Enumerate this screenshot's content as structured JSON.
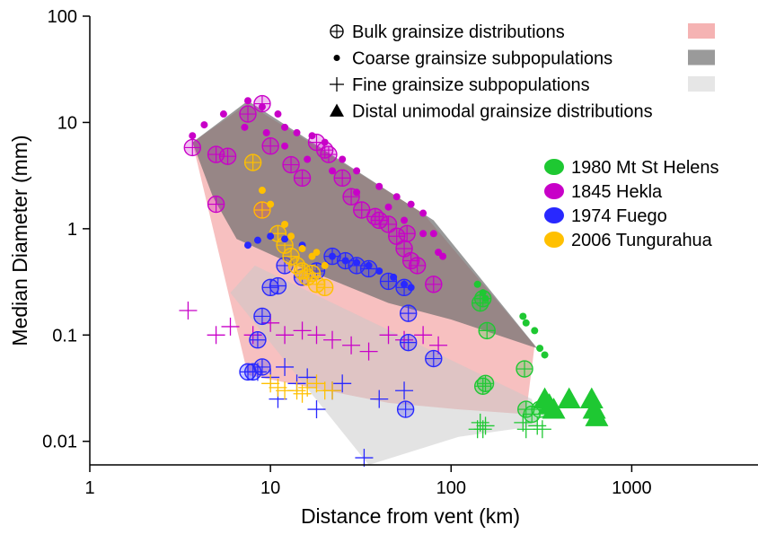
{
  "chart_data": {
    "type": "scatter",
    "xlabel": "Distance from vent (km)",
    "ylabel": "Median Diameter (mm)",
    "x_scale": "log",
    "y_scale": "log",
    "xlim": [
      1,
      5000
    ],
    "ylim": [
      0.006,
      100
    ],
    "x_ticks": [
      {
        "value": 1,
        "label": "1"
      },
      {
        "value": 10,
        "label": "10"
      },
      {
        "value": 100,
        "label": "100"
      },
      {
        "value": 1000,
        "label": "1000"
      }
    ],
    "y_ticks": [
      {
        "value": 0.01,
        "label": "0.01"
      },
      {
        "value": 0.1,
        "label": "0.1"
      },
      {
        "value": 1,
        "label": "1"
      },
      {
        "value": 10,
        "label": "10"
      },
      {
        "value": 100,
        "label": "100"
      }
    ],
    "grid": false,
    "symbol_legend": {
      "placement": "top-right",
      "items": [
        {
          "symbol": "circle-plus",
          "label": "Bulk grainsize distributions",
          "swatch_color": "#f5b3b3"
        },
        {
          "symbol": "dot",
          "label": "Coarse grainsize subpopulations",
          "swatch_color": "#9a9a9a"
        },
        {
          "symbol": "plus",
          "label": "Fine grainsize subpopulations",
          "swatch_color": "#e6e6e6"
        },
        {
          "symbol": "triangle",
          "label": "Distal unimodal grainsize distributions",
          "swatch_color": ""
        }
      ]
    },
    "color_legend": {
      "placement": "right",
      "items": [
        {
          "label": "1980 Mt St Helens",
          "color": "#1ec832"
        },
        {
          "label": "1845 Hekla",
          "color": "#c800c8"
        },
        {
          "label": "1974 Fuego",
          "color": "#2828ff"
        },
        {
          "label": "2006 Tungurahua",
          "color": "#ffc000"
        }
      ]
    },
    "envelopes": [
      {
        "name": "bulk",
        "fill": "#f08c8c",
        "opacity": 0.55,
        "points": [
          [
            3.7,
            6.5
          ],
          [
            7.5,
            15
          ],
          [
            70,
            1.4
          ],
          [
            290,
            0.08
          ],
          [
            260,
            0.018
          ],
          [
            110,
            0.02
          ],
          [
            45,
            0.023
          ],
          [
            7.5,
            0.042
          ],
          [
            3.7,
            6.5
          ]
        ]
      },
      {
        "name": "coarse",
        "fill": "#6e6e6e",
        "opacity": 0.7,
        "points": [
          [
            3.7,
            6.5
          ],
          [
            7.5,
            16
          ],
          [
            80,
            1.2
          ],
          [
            300,
            0.075
          ],
          [
            100,
            0.14
          ],
          [
            45,
            0.2
          ],
          [
            12,
            0.5
          ],
          [
            6.5,
            0.8
          ],
          [
            4.8,
            2.0
          ],
          [
            3.7,
            6.5
          ]
        ]
      },
      {
        "name": "fine",
        "fill": "#c8c8c8",
        "opacity": 0.5,
        "points": [
          [
            6,
            0.25
          ],
          [
            8.2,
            0.45
          ],
          [
            280,
            0.025
          ],
          [
            300,
            0.014
          ],
          [
            110,
            0.011
          ],
          [
            35,
            0.006
          ],
          [
            6,
            0.25
          ]
        ]
      }
    ],
    "series": [
      {
        "name": "1845 Hekla",
        "color": "#c800c8",
        "marker": "dot",
        "points": [
          [
            3.7,
            7.5
          ],
          [
            4.3,
            9.5
          ],
          [
            5.5,
            12
          ],
          [
            7.5,
            16
          ],
          [
            9,
            14
          ],
          [
            11,
            12
          ],
          [
            12,
            9
          ],
          [
            14,
            8
          ],
          [
            17,
            7.5
          ],
          [
            20,
            6.5
          ],
          [
            25,
            4.5
          ],
          [
            30,
            3.5
          ],
          [
            40,
            2.5
          ],
          [
            50,
            2
          ],
          [
            60,
            1.7
          ],
          [
            70,
            1.4
          ],
          [
            80,
            0.9
          ],
          [
            90,
            0.55
          ],
          [
            7.2,
            9
          ],
          [
            9.5,
            8
          ],
          [
            12,
            6
          ],
          [
            16,
            4.5
          ],
          [
            22,
            3.5
          ],
          [
            30,
            2.2
          ],
          [
            45,
            1.6
          ],
          [
            55,
            1.2
          ],
          [
            70,
            0.9
          ],
          [
            85,
            0.6
          ]
        ]
      },
      {
        "name": "1845 Hekla",
        "color": "#c800c8",
        "marker": "circle-plus",
        "points": [
          [
            3.7,
            5.8
          ],
          [
            5,
            5
          ],
          [
            5.8,
            4.8
          ],
          [
            7.5,
            12
          ],
          [
            9,
            15
          ],
          [
            10,
            6
          ],
          [
            13,
            4
          ],
          [
            15,
            3
          ],
          [
            18,
            6.5
          ],
          [
            21,
            5
          ],
          [
            25,
            3
          ],
          [
            28,
            2
          ],
          [
            32,
            1.5
          ],
          [
            38,
            1.3
          ],
          [
            45,
            1.1
          ],
          [
            50,
            0.85
          ],
          [
            55,
            0.65
          ],
          [
            60,
            0.5
          ],
          [
            65,
            0.45
          ],
          [
            80,
            0.3
          ],
          [
            5,
            1.7
          ],
          [
            9,
            1.5
          ],
          [
            20,
            5.5
          ],
          [
            40,
            1.2
          ],
          [
            57,
            0.9
          ]
        ]
      },
      {
        "name": "1845 Hekla",
        "color": "#c800c8",
        "marker": "plus",
        "points": [
          [
            3.5,
            0.17
          ],
          [
            5,
            0.1
          ],
          [
            6,
            0.12
          ],
          [
            8,
            0.1
          ],
          [
            10,
            0.13
          ],
          [
            12,
            0.1
          ],
          [
            15,
            0.11
          ],
          [
            18,
            0.1
          ],
          [
            22,
            0.09
          ],
          [
            28,
            0.08
          ],
          [
            35,
            0.07
          ],
          [
            45,
            0.1
          ],
          [
            55,
            0.09
          ],
          [
            70,
            0.1
          ],
          [
            85,
            0.08
          ]
        ]
      },
      {
        "name": "1974 Fuego",
        "color": "#2828ff",
        "marker": "dot",
        "points": [
          [
            7.5,
            0.7
          ],
          [
            8.5,
            0.78
          ],
          [
            10,
            0.85
          ],
          [
            12,
            0.8
          ],
          [
            15,
            0.7
          ],
          [
            18,
            0.6
          ],
          [
            22,
            0.55
          ],
          [
            26,
            0.5
          ],
          [
            30,
            0.48
          ],
          [
            35,
            0.45
          ],
          [
            40,
            0.4
          ],
          [
            48,
            0.35
          ],
          [
            55,
            0.3
          ],
          [
            60,
            0.28
          ]
        ]
      },
      {
        "name": "1974 Fuego",
        "color": "#2828ff",
        "marker": "circle-plus",
        "points": [
          [
            8,
            0.045
          ],
          [
            8.5,
            0.09
          ],
          [
            9,
            0.15
          ],
          [
            10,
            0.28
          ],
          [
            12,
            0.45
          ],
          [
            15,
            0.35
          ],
          [
            18,
            0.4
          ],
          [
            22,
            0.55
          ],
          [
            26,
            0.5
          ],
          [
            30,
            0.45
          ],
          [
            35,
            0.42
          ],
          [
            45,
            0.32
          ],
          [
            55,
            0.28
          ],
          [
            58,
            0.16
          ],
          [
            58,
            0.085
          ],
          [
            80,
            0.06
          ],
          [
            56,
            0.02
          ],
          [
            7.5,
            0.045
          ],
          [
            9,
            0.05
          ],
          [
            11,
            0.29
          ]
        ]
      },
      {
        "name": "1974 Fuego",
        "color": "#2828ff",
        "marker": "plus",
        "points": [
          [
            8.5,
            0.045
          ],
          [
            10,
            0.04
          ],
          [
            11,
            0.025
          ],
          [
            12,
            0.05
          ],
          [
            14,
            0.035
          ],
          [
            16,
            0.04
          ],
          [
            18,
            0.02
          ],
          [
            22,
            0.03
          ],
          [
            25,
            0.035
          ],
          [
            33,
            0.007
          ],
          [
            40,
            0.025
          ],
          [
            55,
            0.03
          ]
        ]
      },
      {
        "name": "2006 Tungurahua",
        "color": "#ffc000",
        "marker": "dot",
        "points": [
          [
            9,
            2.3
          ],
          [
            10,
            1.7
          ],
          [
            12,
            1.1
          ],
          [
            13,
            0.85
          ],
          [
            15,
            0.65
          ],
          [
            17,
            0.55
          ],
          [
            18,
            0.6
          ],
          [
            20,
            0.45
          ]
        ]
      },
      {
        "name": "2006 Tungurahua",
        "color": "#ffc000",
        "marker": "circle-plus",
        "points": [
          [
            8,
            4.2
          ],
          [
            9,
            1.5
          ],
          [
            11,
            0.9
          ],
          [
            12,
            0.7
          ],
          [
            13,
            0.55
          ],
          [
            14,
            0.45
          ],
          [
            15,
            0.4
          ],
          [
            16,
            0.35
          ],
          [
            17,
            0.38
          ],
          [
            18,
            0.3
          ],
          [
            20,
            0.28
          ]
        ]
      },
      {
        "name": "2006 Tungurahua",
        "color": "#ffc000",
        "marker": "plus",
        "points": [
          [
            10,
            0.035
          ],
          [
            12,
            0.03
          ],
          [
            14,
            0.03
          ],
          [
            16,
            0.032
          ],
          [
            18,
            0.035
          ],
          [
            20,
            0.03
          ],
          [
            22,
            0.03
          ],
          [
            15,
            0.028
          ],
          [
            11,
            0.032
          ]
        ]
      },
      {
        "name": "1980 Mt St Helens",
        "color": "#1ec832",
        "marker": "dot",
        "points": [
          [
            140,
            0.3
          ],
          [
            150,
            0.25
          ],
          [
            155,
            0.22
          ],
          [
            250,
            0.15
          ],
          [
            260,
            0.13
          ],
          [
            290,
            0.11
          ],
          [
            310,
            0.075
          ],
          [
            330,
            0.065
          ]
        ]
      },
      {
        "name": "1980 Mt St Helens",
        "color": "#1ec832",
        "marker": "circle-plus",
        "points": [
          [
            145,
            0.2
          ],
          [
            150,
            0.22
          ],
          [
            158,
            0.11
          ],
          [
            155,
            0.035
          ],
          [
            150,
            0.033
          ],
          [
            255,
            0.048
          ],
          [
            260,
            0.02
          ],
          [
            280,
            0.018
          ],
          [
            310,
            0.02
          ]
        ]
      },
      {
        "name": "1980 Mt St Helens",
        "color": "#1ec832",
        "marker": "plus",
        "points": [
          [
            140,
            0.013
          ],
          [
            145,
            0.015
          ],
          [
            150,
            0.013
          ],
          [
            155,
            0.014
          ],
          [
            250,
            0.015
          ],
          [
            260,
            0.013
          ],
          [
            300,
            0.014
          ],
          [
            320,
            0.013
          ]
        ]
      },
      {
        "name": "1980 Mt St Helens",
        "color": "#1ec832",
        "marker": "triangle",
        "points": [
          [
            330,
            0.025
          ],
          [
            350,
            0.022
          ],
          [
            370,
            0.02
          ],
          [
            450,
            0.025
          ],
          [
            600,
            0.025
          ],
          [
            620,
            0.02
          ],
          [
            640,
            0.017
          ]
        ]
      }
    ]
  }
}
